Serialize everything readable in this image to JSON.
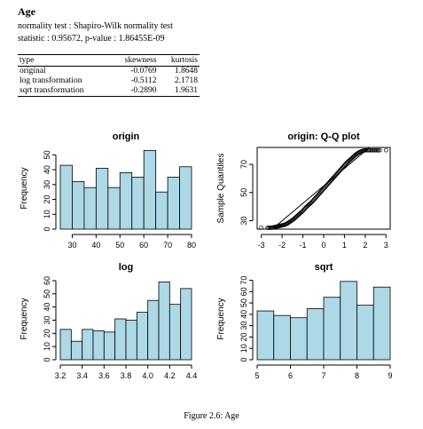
{
  "section_title": "Age",
  "normality_line": "normality test : Shapiro-Wilk normality test",
  "statistic_line": "statistic : 0.95672, p-value : 1.86455E-09",
  "table": {
    "headers": [
      "type",
      "skewness",
      "kurtosis"
    ],
    "rows": [
      [
        "original",
        "-0.0769",
        "1.8648"
      ],
      [
        "log transformation",
        "-0.5112",
        "2.1718"
      ],
      [
        "sqrt transformation",
        "-0.2890",
        "1.9631"
      ]
    ]
  },
  "caption": "Figure 2.6: Age",
  "colors": {
    "bar_fill": "#add8e6",
    "stroke": "#000000"
  },
  "chart_data": [
    {
      "type": "bar",
      "title": "origin",
      "ylabel": "Frequency",
      "xlabel": "",
      "bin_edges": [
        25,
        30,
        35,
        40,
        45,
        50,
        55,
        60,
        65,
        70,
        75,
        80
      ],
      "values": [
        43,
        32,
        28,
        41,
        28,
        38,
        35,
        53,
        25,
        35,
        42
      ],
      "xticks": [
        30,
        40,
        50,
        60,
        70,
        80
      ],
      "yticks": [
        0,
        10,
        20,
        30,
        40,
        50
      ],
      "xlim": [
        25,
        80
      ],
      "ylim": [
        0,
        55
      ]
    },
    {
      "type": "scatter",
      "title": "origin: Q-Q plot",
      "ylabel": "Sample Quantiles",
      "xlabel": "",
      "xticks": [
        -3,
        -2,
        -1,
        0,
        1,
        2,
        3
      ],
      "yticks": [
        30,
        50,
        70
      ],
      "xlim": [
        -3.2,
        3.2
      ],
      "ylim": [
        24,
        82
      ],
      "points": [
        [
          -3.0,
          25
        ],
        [
          -2.7,
          25
        ],
        [
          -2.5,
          25
        ],
        [
          -2.35,
          25.5
        ],
        [
          -2.2,
          26
        ],
        [
          -2.05,
          26.5
        ],
        [
          -1.9,
          27
        ],
        [
          -1.75,
          28
        ],
        [
          -1.6,
          29.5
        ],
        [
          -1.45,
          31
        ],
        [
          -1.3,
          33
        ],
        [
          -1.15,
          35
        ],
        [
          -1.0,
          37
        ],
        [
          -0.85,
          39.5
        ],
        [
          -0.7,
          41.5
        ],
        [
          -0.55,
          43.5
        ],
        [
          -0.4,
          46
        ],
        [
          -0.25,
          48.5
        ],
        [
          -0.1,
          51
        ],
        [
          0.05,
          53.5
        ],
        [
          0.2,
          56
        ],
        [
          0.35,
          58.5
        ],
        [
          0.5,
          61
        ],
        [
          0.65,
          63.5
        ],
        [
          0.8,
          66
        ],
        [
          0.95,
          68.5
        ],
        [
          1.1,
          71
        ],
        [
          1.25,
          73
        ],
        [
          1.4,
          75
        ],
        [
          1.55,
          77
        ],
        [
          1.7,
          78.5
        ],
        [
          1.85,
          79.5
        ],
        [
          2.0,
          80
        ],
        [
          2.2,
          80
        ],
        [
          2.45,
          80
        ],
        [
          2.7,
          80
        ],
        [
          3.0,
          80
        ]
      ],
      "reference_line": [
        [
          -2.4,
          25
        ],
        [
          2.2,
          82
        ]
      ]
    },
    {
      "type": "bar",
      "title": "log",
      "ylabel": "Frequency",
      "xlabel": "",
      "bin_edges": [
        3.2,
        3.3,
        3.4,
        3.5,
        3.6,
        3.7,
        3.8,
        3.9,
        4.0,
        4.1,
        4.2,
        4.3,
        4.4
      ],
      "values": [
        23,
        14,
        23,
        22,
        21,
        31,
        30,
        36,
        45,
        59,
        42,
        54
      ],
      "xticks": [
        3.2,
        3.4,
        3.6,
        3.8,
        4.0,
        4.2,
        4.4
      ],
      "xtick_labels": [
        "3.2",
        "3.4",
        "3.6",
        "3.8",
        "4.0",
        "4.2",
        "4.4"
      ],
      "yticks": [
        0,
        10,
        20,
        30,
        40,
        50,
        60
      ],
      "xlim": [
        3.2,
        4.4
      ],
      "ylim": [
        0,
        62
      ]
    },
    {
      "type": "bar",
      "title": "sqrt",
      "ylabel": "Frequency",
      "xlabel": "",
      "bin_edges": [
        5,
        5.5,
        6,
        6.5,
        7,
        7.5,
        8,
        8.5,
        9
      ],
      "values": [
        43,
        39,
        37,
        45,
        55,
        69,
        48,
        64
      ],
      "xticks": [
        5,
        6,
        7,
        8,
        9
      ],
      "yticks": [
        0,
        10,
        20,
        30,
        40,
        50,
        60,
        70
      ],
      "xlim": [
        5,
        9
      ],
      "ylim": [
        0,
        72
      ]
    }
  ]
}
